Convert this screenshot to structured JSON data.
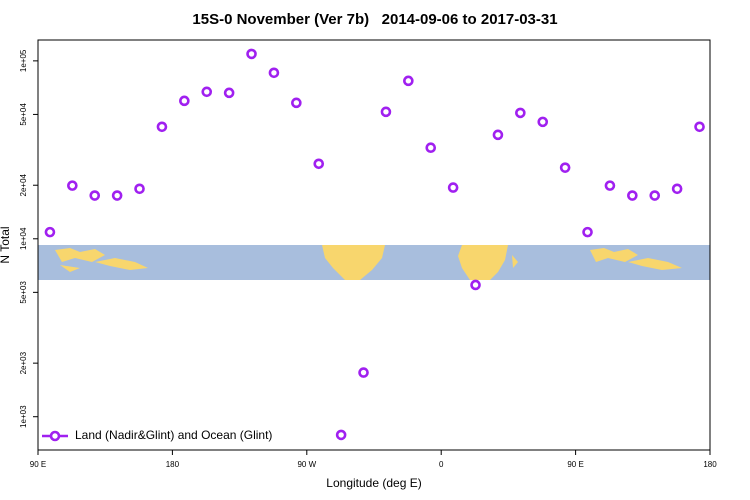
{
  "chart_data": {
    "type": "scatter",
    "title": "15S-0 November (Ver 7b)   2014-09-06 to 2017-03-31",
    "x_label": "Longitude (deg E)",
    "y_label": "N Total",
    "log_y": true,
    "legend": "bottom-left",
    "series": [
      {
        "name": "Land (Nadir&Glint) and Ocean (Glint)",
        "color": "#a020f0",
        "x": [
          98,
          113,
          128,
          143,
          158,
          173,
          188,
          203,
          218,
          233,
          248,
          263,
          278,
          293,
          308,
          323,
          338,
          353,
          368,
          383,
          398,
          413,
          428,
          443,
          458,
          473,
          488,
          503,
          518,
          533
        ],
        "values": [
          10900,
          19900,
          17500,
          17500,
          19100,
          42600,
          59600,
          67000,
          66100,
          109400,
          85700,
          58100,
          26400,
          790,
          1770,
          51700,
          77200,
          32500,
          19400,
          5500,
          38400,
          51000,
          45400,
          25100,
          10900,
          19900,
          17500,
          17500,
          19100,
          42600
        ]
      }
    ],
    "xlim": [
      90,
      540
    ],
    "xticks": [
      {
        "value": 90,
        "label": "90 E"
      },
      {
        "value": 180,
        "label": "180"
      },
      {
        "value": 270,
        "label": "90 W"
      },
      {
        "value": 360,
        "label": "0"
      },
      {
        "value": 450,
        "label": "90 E"
      },
      {
        "value": 540,
        "label": "180"
      }
    ],
    "ylim": [
      650,
      131000
    ],
    "yticks": [
      {
        "value": 1000,
        "label": "1e+03"
      },
      {
        "value": 2000,
        "label": "2e+03"
      },
      {
        "value": 5000,
        "label": "5e+03"
      },
      {
        "value": 10000,
        "label": "1e+04"
      },
      {
        "value": 20000,
        "label": "2e+04"
      },
      {
        "value": 50000,
        "label": "5e+04"
      },
      {
        "value": 100000,
        "label": "1e+05"
      }
    ]
  }
}
